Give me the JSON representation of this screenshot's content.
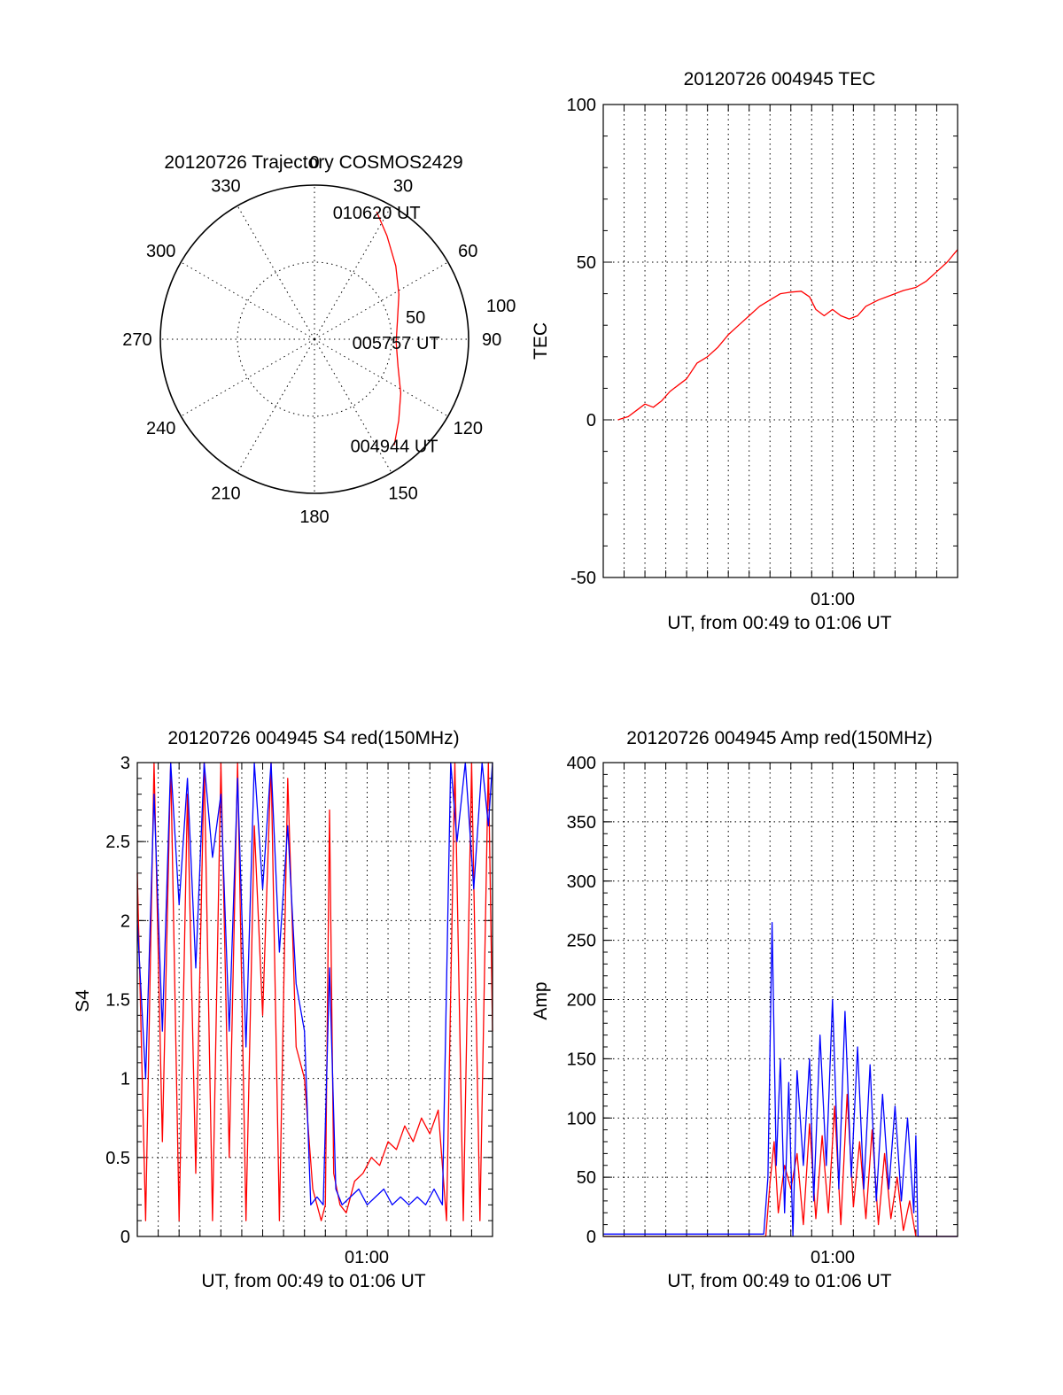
{
  "chart_data": [
    {
      "id": "polar",
      "type": "scatter",
      "title": "20120726 Trajectory COSMOS2429",
      "radial_ticks": [
        "50",
        "100"
      ],
      "rlim": [
        0,
        100
      ],
      "angle_labels": [
        "0",
        "30",
        "60",
        "90",
        "120",
        "150",
        "180",
        "210",
        "240",
        "270",
        "300",
        "330"
      ],
      "angles_deg": [
        0,
        30,
        60,
        90,
        120,
        150,
        180,
        210,
        240,
        270,
        300,
        330
      ],
      "trajectory": {
        "color": "#ff0000",
        "azimuth_deg": [
          26,
          35,
          48,
          62,
          78,
          92,
          108,
          122,
          134,
          143
        ],
        "zenith": [
          92,
          82,
          71,
          62,
          55,
          53,
          57,
          66,
          76,
          86
        ]
      },
      "point_labels": [
        {
          "text": "010620 UT",
          "azimuth_deg": 26,
          "zenith": 92
        },
        {
          "text": "005757 UT",
          "azimuth_deg": 92,
          "zenith": 53
        },
        {
          "text": "004944 UT",
          "azimuth_deg": 143,
          "zenith": 86
        }
      ],
      "grid": true
    },
    {
      "id": "tec",
      "type": "line",
      "title": "20120726 004945 TEC",
      "xlabel": "UT, from 00:49 to 01:06 UT",
      "ylabel": "TEC",
      "xlim": [
        0,
        17
      ],
      "ylim": [
        -50,
        100
      ],
      "yticks": [
        "-50",
        "0",
        "50",
        "100"
      ],
      "ytick_values": [
        -50,
        0,
        50,
        100
      ],
      "xtick_label": "01:00",
      "xtick_value": 11,
      "grid": true,
      "series": [
        {
          "color": "#ff0000",
          "x": [
            0.7,
            1.2,
            1.6,
            2.0,
            2.4,
            2.8,
            3.2,
            3.6,
            4.0,
            4.5,
            5.0,
            5.5,
            6.0,
            6.5,
            7.0,
            7.5,
            8.0,
            8.5,
            9.0,
            9.5,
            9.9,
            10.2,
            10.6,
            11.0,
            11.4,
            11.8,
            12.2,
            12.6,
            13.2,
            13.8,
            14.4,
            15.0,
            15.5,
            16.0,
            16.5,
            17.0
          ],
          "y": [
            0,
            1,
            3,
            5,
            4,
            6,
            9,
            11,
            13,
            18,
            20,
            23,
            27,
            30,
            33,
            36,
            38,
            40,
            40.5,
            40.8,
            39,
            35,
            33,
            35,
            33,
            32,
            33,
            36,
            38,
            39.5,
            41,
            42,
            44,
            47,
            50,
            54
          ]
        }
      ]
    },
    {
      "id": "s4",
      "type": "line",
      "title": "20120726 004945 S4 red(150MHz)",
      "xlabel": "UT, from 00:49 to 01:06 UT",
      "ylabel": "S4",
      "xlim": [
        0,
        17
      ],
      "ylim": [
        0,
        3
      ],
      "yticks": [
        "0",
        "0.5",
        "1",
        "1.5",
        "2",
        "2.5",
        "3"
      ],
      "ytick_values": [
        0,
        0.5,
        1,
        1.5,
        2,
        2.5,
        3
      ],
      "xtick_label": "01:00",
      "xtick_value": 11,
      "grid": true,
      "series": [
        {
          "color": "#ff0000",
          "x": [
            0.0,
            0.4,
            0.8,
            1.2,
            1.6,
            2.0,
            2.4,
            2.8,
            3.2,
            3.6,
            4.0,
            4.4,
            4.8,
            5.2,
            5.6,
            6.0,
            6.4,
            6.8,
            7.2,
            7.6,
            8.0,
            8.4,
            8.8,
            9.0,
            9.2,
            9.4,
            9.7,
            10.0,
            10.4,
            10.8,
            11.2,
            11.6,
            12.0,
            12.4,
            12.8,
            13.2,
            13.6,
            14.0,
            14.4,
            14.8,
            15.2,
            15.6,
            16.0,
            16.4,
            16.8,
            17.0
          ],
          "y": [
            2.3,
            0.1,
            3.0,
            0.6,
            3.0,
            0.1,
            2.8,
            0.4,
            3.0,
            0.1,
            3.0,
            0.5,
            3.0,
            0.1,
            2.6,
            1.4,
            3.0,
            0.1,
            2.9,
            1.2,
            1.0,
            0.3,
            0.1,
            0.2,
            2.7,
            0.4,
            0.2,
            0.15,
            0.35,
            0.4,
            0.5,
            0.45,
            0.6,
            0.55,
            0.7,
            0.6,
            0.75,
            0.65,
            0.8,
            0.1,
            3.0,
            0.1,
            3.0,
            0.1,
            3.0,
            1.3
          ]
        },
        {
          "color": "#0000ff",
          "x": [
            0.0,
            0.4,
            0.8,
            1.2,
            1.6,
            2.0,
            2.4,
            2.8,
            3.2,
            3.6,
            4.0,
            4.4,
            4.8,
            5.2,
            5.6,
            6.0,
            6.4,
            6.8,
            7.2,
            7.6,
            8.0,
            8.3,
            8.6,
            8.9,
            9.2,
            9.5,
            9.8,
            10.2,
            10.6,
            11.0,
            11.4,
            11.8,
            12.2,
            12.6,
            13.0,
            13.4,
            13.8,
            14.2,
            14.6,
            15.0,
            15.3,
            15.7,
            16.1,
            16.5,
            16.8,
            17.0
          ],
          "y": [
            2.0,
            1.0,
            2.8,
            1.3,
            3.0,
            2.1,
            2.9,
            1.7,
            3.0,
            2.4,
            2.8,
            1.3,
            2.9,
            1.2,
            3.0,
            2.2,
            3.0,
            1.8,
            2.6,
            1.6,
            1.3,
            0.2,
            0.25,
            0.2,
            1.7,
            0.3,
            0.2,
            0.25,
            0.3,
            0.2,
            0.25,
            0.3,
            0.2,
            0.25,
            0.2,
            0.25,
            0.2,
            0.3,
            0.2,
            3.0,
            2.5,
            3.0,
            2.2,
            3.0,
            2.6,
            3.0
          ]
        }
      ]
    },
    {
      "id": "amp",
      "type": "line",
      "title": "20120726 004945 Amp red(150MHz)",
      "xlabel": "UT, from 00:49 to 01:06 UT",
      "ylabel": "Amp",
      "xlim": [
        0,
        17
      ],
      "ylim": [
        0,
        400
      ],
      "yticks": [
        "0",
        "50",
        "100",
        "150",
        "200",
        "250",
        "300",
        "350",
        "400"
      ],
      "ytick_values": [
        0,
        50,
        100,
        150,
        200,
        250,
        300,
        350,
        400
      ],
      "xtick_label": "01:00",
      "xtick_value": 11,
      "grid": true,
      "series": [
        {
          "color": "#ff0000",
          "x": [
            0.0,
            7.8,
            8.0,
            8.2,
            8.4,
            8.7,
            9.0,
            9.3,
            9.6,
            9.9,
            10.2,
            10.5,
            10.8,
            11.1,
            11.4,
            11.7,
            12.0,
            12.3,
            12.6,
            12.9,
            13.2,
            13.5,
            13.8,
            14.1,
            14.4,
            14.7,
            15.0,
            15.1,
            17.0
          ],
          "y": [
            0,
            0,
            45,
            80,
            20,
            60,
            40,
            70,
            10,
            95,
            15,
            85,
            20,
            110,
            10,
            120,
            25,
            80,
            15,
            90,
            10,
            70,
            15,
            50,
            5,
            30,
            0,
            0,
            0
          ]
        },
        {
          "color": "#0000ff",
          "x": [
            0.0,
            7.7,
            7.9,
            8.1,
            8.3,
            8.5,
            8.7,
            8.9,
            9.1,
            9.3,
            9.6,
            9.9,
            10.1,
            10.4,
            10.7,
            11.0,
            11.3,
            11.6,
            11.9,
            12.2,
            12.5,
            12.8,
            13.1,
            13.4,
            13.7,
            14.0,
            14.3,
            14.6,
            14.9,
            15.0,
            15.1,
            17.0
          ],
          "y": [
            2,
            2,
            50,
            265,
            60,
            150,
            20,
            130,
            0,
            140,
            60,
            150,
            30,
            170,
            60,
            200,
            40,
            190,
            50,
            160,
            40,
            145,
            30,
            120,
            40,
            110,
            30,
            100,
            20,
            85,
            0,
            0
          ]
        }
      ]
    }
  ]
}
